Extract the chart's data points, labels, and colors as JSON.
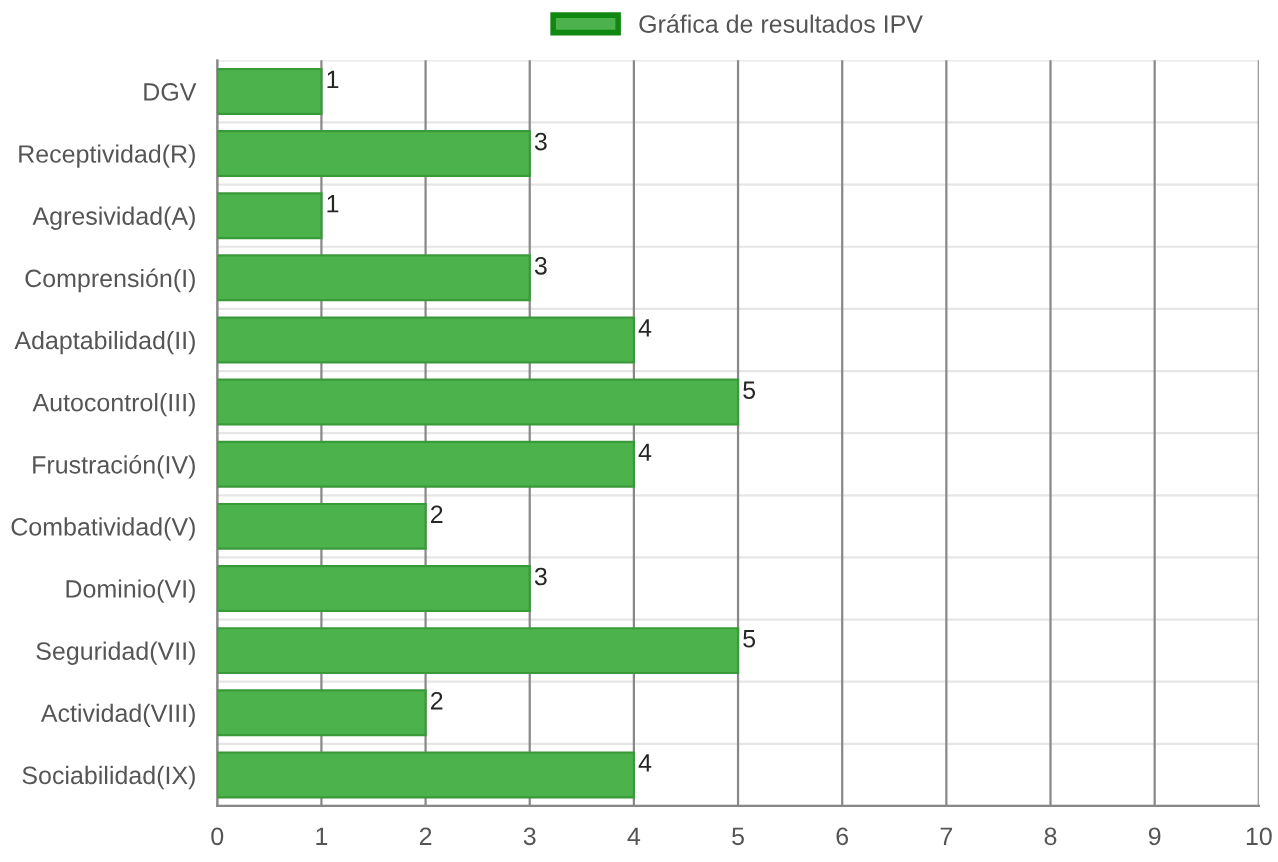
{
  "chart_data": {
    "type": "bar",
    "orientation": "horizontal",
    "categories": [
      "DGV",
      "Receptividad(R)",
      "Agresividad(A)",
      "Comprensión(I)",
      "Adaptabilidad(II)",
      "Autocontrol(III)",
      "Frustración(IV)",
      "Combatividad(V)",
      "Dominio(VI)",
      "Seguridad(VII)",
      "Actividad(VIII)",
      "Sociabilidad(IX)"
    ],
    "series": [
      {
        "name": "Gráfica de resultados IPV",
        "color": "#4cb34c",
        "values": [
          1,
          3,
          1,
          3,
          4,
          5,
          4,
          2,
          3,
          5,
          2,
          4
        ]
      }
    ],
    "xlim": [
      0,
      10
    ],
    "xticks": [
      0,
      1,
      2,
      3,
      4,
      5,
      6,
      7,
      8,
      9,
      10
    ],
    "grid": true,
    "legend": "top",
    "data_labels": true
  }
}
